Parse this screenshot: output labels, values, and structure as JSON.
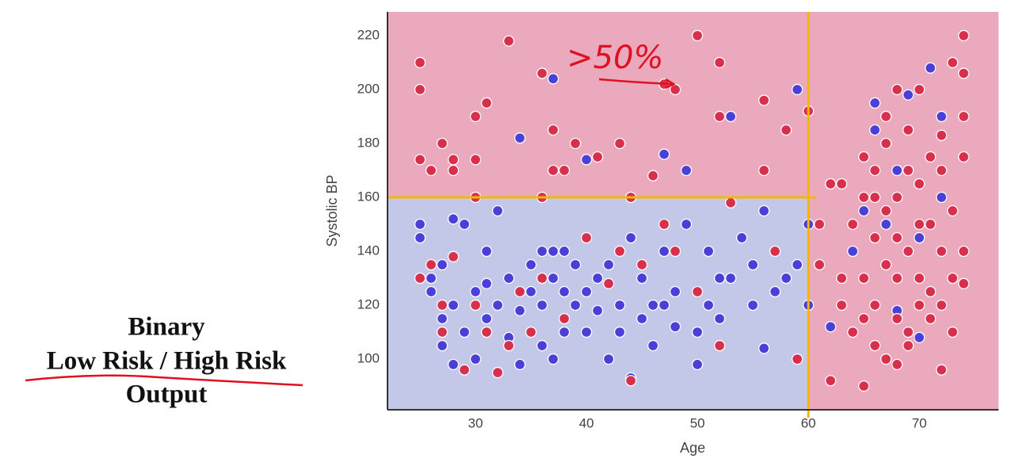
{
  "chart_data": {
    "type": "scatter",
    "xlabel": "Age",
    "ylabel": "Systolic BP",
    "annotation": ">50%",
    "side_text": [
      "Binary",
      "Low Risk / High Risk",
      "Output"
    ],
    "xlim": [
      22.07,
      77.14
    ],
    "ylim": [
      81.2,
      228.8
    ],
    "xticks": [
      30,
      40,
      50,
      60,
      70
    ],
    "yticks": [
      100,
      120,
      140,
      160,
      180,
      200,
      220
    ],
    "thresholds": {
      "x": 60,
      "y": 160
    },
    "background": {
      "high": "#eaa9bd",
      "low": "#c3c8e9",
      "line": "#f2b705"
    },
    "series": [
      {
        "color": "#4a3fd6",
        "x": [
          25,
          25,
          26,
          26,
          27,
          27,
          27,
          28,
          28,
          28,
          29,
          29,
          30,
          30,
          31,
          31,
          31,
          32,
          32,
          33,
          33,
          34,
          34,
          35,
          35,
          36,
          36,
          36,
          37,
          37,
          37,
          38,
          38,
          38,
          39,
          39,
          40,
          40,
          41,
          41,
          42,
          42,
          43,
          43,
          44,
          44,
          45,
          45,
          46,
          46,
          47,
          47,
          48,
          48,
          49,
          50,
          50,
          51,
          51,
          52,
          52,
          53,
          54,
          55,
          55,
          56,
          56,
          57,
          58,
          59,
          60,
          60,
          62,
          64,
          66,
          67,
          68,
          69,
          70,
          71,
          72,
          70,
          34,
          37,
          40,
          47,
          49,
          53,
          59,
          65,
          66,
          68,
          72
        ],
        "y": [
          150,
          145,
          130,
          125,
          135,
          115,
          105,
          152,
          120,
          98,
          150,
          110,
          125,
          100,
          140,
          128,
          115,
          155,
          120,
          130,
          108,
          118,
          98,
          125,
          135,
          140,
          120,
          105,
          140,
          130,
          100,
          140,
          125,
          110,
          135,
          120,
          125,
          110,
          130,
          118,
          100,
          135,
          120,
          110,
          145,
          93,
          130,
          115,
          120,
          105,
          140,
          120,
          125,
          112,
          150,
          110,
          98,
          140,
          120,
          130,
          115,
          130,
          145,
          135,
          120,
          155,
          104,
          125,
          130,
          135,
          150,
          120,
          112,
          140,
          195,
          150,
          118,
          198,
          145,
          208,
          190,
          108,
          182,
          204,
          174,
          176,
          170,
          190,
          200,
          155,
          185,
          170,
          160
        ]
      },
      {
        "color": "#d8304c",
        "x": [
          25,
          25,
          25,
          26,
          27,
          28,
          28,
          30,
          30,
          30,
          31,
          33,
          36,
          37,
          37,
          38,
          39,
          41,
          43,
          46,
          47,
          48,
          50,
          52,
          52,
          56,
          56,
          58,
          60,
          53,
          44,
          36,
          25,
          26,
          27,
          27,
          28,
          29,
          30,
          31,
          32,
          33,
          34,
          35,
          36,
          38,
          40,
          42,
          43,
          44,
          45,
          47,
          48,
          50,
          52,
          57,
          59,
          61,
          62,
          62,
          63,
          63,
          64,
          64,
          65,
          65,
          65,
          65,
          66,
          66,
          66,
          66,
          67,
          67,
          67,
          67,
          68,
          68,
          68,
          68,
          68,
          69,
          69,
          69,
          69,
          70,
          70,
          70,
          70,
          71,
          71,
          71,
          72,
          72,
          72,
          72,
          73,
          73,
          73,
          73,
          74,
          74,
          74,
          74,
          74,
          74,
          69,
          67,
          66,
          65,
          68,
          70,
          71,
          72,
          63,
          61
        ],
        "y": [
          210,
          200,
          174,
          170,
          180,
          170,
          174,
          190,
          174,
          160,
          195,
          218,
          206,
          185,
          170,
          170,
          180,
          175,
          180,
          168,
          202,
          200,
          220,
          210,
          190,
          196,
          170,
          185,
          192,
          158,
          160,
          160,
          130,
          135,
          120,
          110,
          138,
          96,
          120,
          110,
          95,
          105,
          125,
          110,
          130,
          115,
          145,
          128,
          140,
          92,
          135,
          150,
          140,
          125,
          105,
          140,
          100,
          135,
          92,
          165,
          130,
          165,
          110,
          150,
          90,
          130,
          160,
          175,
          120,
          145,
          170,
          105,
          100,
          135,
          155,
          180,
          115,
          130,
          160,
          200,
          98,
          110,
          140,
          170,
          185,
          120,
          150,
          200,
          130,
          115,
          175,
          125,
          96,
          140,
          170,
          183,
          130,
          155,
          210,
          110,
          220,
          206,
          190,
          175,
          128,
          140,
          105,
          190,
          160,
          115,
          145,
          165,
          150,
          120,
          120,
          150
        ]
      }
    ]
  }
}
